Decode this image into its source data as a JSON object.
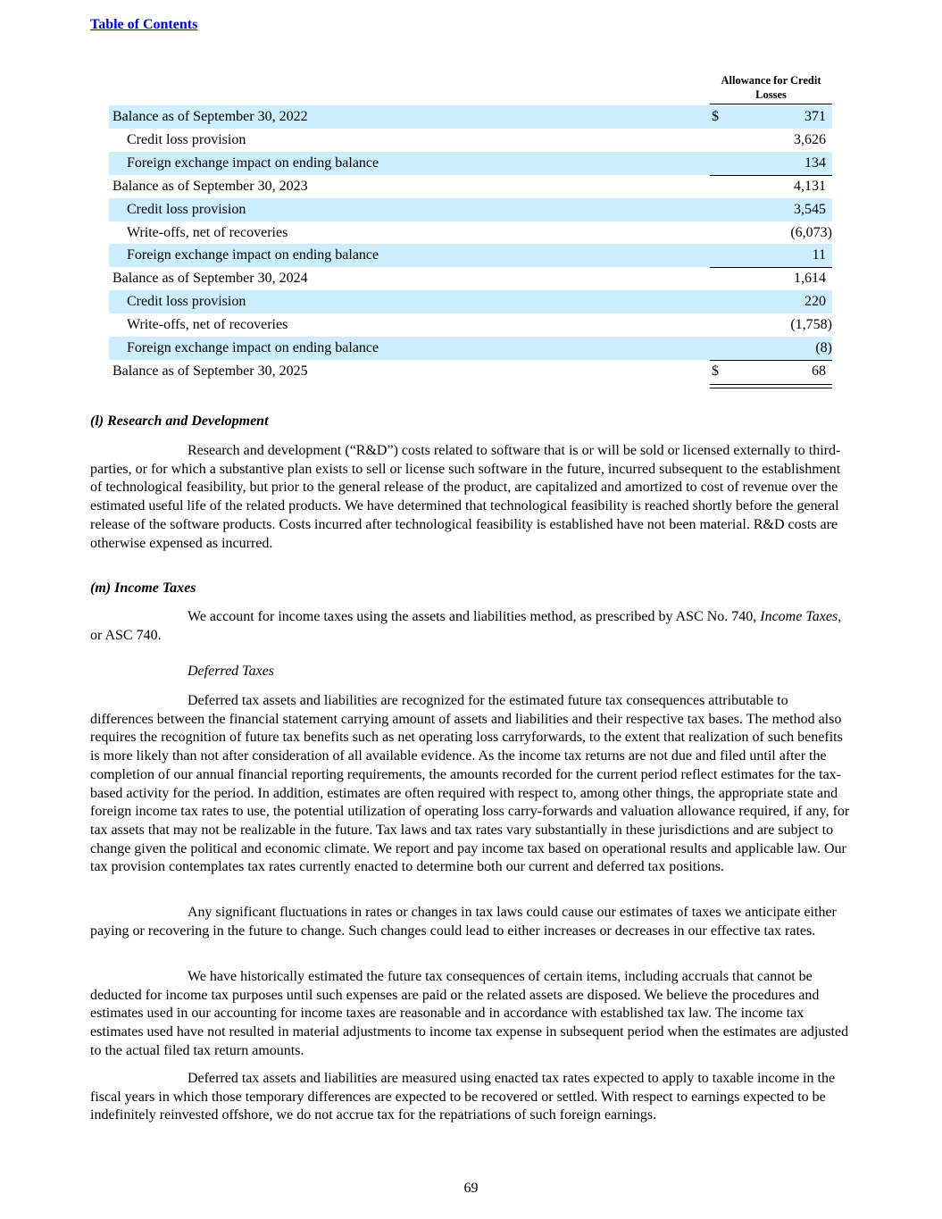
{
  "header": {
    "toc_link": "Table of Contents"
  },
  "table": {
    "column_header": "Allowance for Credit Losses",
    "rows": [
      {
        "label": "Balance as of September 30, 2022",
        "currency": "$",
        "value": "371"
      },
      {
        "label": "Credit loss provision",
        "value": "3,626"
      },
      {
        "label": "Foreign exchange impact on ending balance",
        "value": "134"
      },
      {
        "label": "Balance as of September 30, 2023",
        "value": "4,131"
      },
      {
        "label": "Credit loss provision",
        "value": "3,545"
      },
      {
        "label": "Write-offs, net of recoveries",
        "value": "(6,073)"
      },
      {
        "label": "Foreign exchange impact on ending balance",
        "value": "11"
      },
      {
        "label": "Balance as of September 30, 2024",
        "value": "1,614"
      },
      {
        "label": "Credit loss provision",
        "value": "220"
      },
      {
        "label": "Write-offs, net of recoveries",
        "value": "(1,758)"
      },
      {
        "label": "Foreign exchange impact on ending balance",
        "value": "(8)"
      },
      {
        "label": "Balance as of September 30, 2025",
        "currency": "$",
        "value": "68"
      }
    ]
  },
  "sections": {
    "rd_heading": "(l) Research and Development",
    "rd_p1": "Research and development (“R&D”) costs related to software that is or will be sold or licensed externally to third-parties, or for which a substantive plan exists to sell or license such software in the future, incurred subsequent to the establishment of technological feasibility, but prior to the general release of the product, are capitalized and amortized to cost of revenue over the estimated useful life of the related products. We have determined that technological feasibility is reached shortly before the general release of the software products. Costs incurred after technological feasibility is established have not been material. R&D costs are otherwise expensed as incurred.",
    "tax_heading": "(m) Income Taxes",
    "tax_p1_a": "We account for income taxes using the assets and liabilities method, as prescribed by ASC No. 740, ",
    "tax_p1_italic": "Income Taxes",
    "tax_p1_b": ", or ASC 740.",
    "deferred_heading": "Deferred Taxes",
    "def_p1": "Deferred tax assets and liabilities are recognized for the estimated future tax consequences attributable to differences between the financial statement carrying amount of assets and liabilities and their respective tax bases. The method also requires the recognition of future tax benefits such as net operating loss carryforwards, to the extent that realization of such benefits is more likely than not after consideration of all available evidence. As the income tax returns are not due and filed until after the completion of our annual financial reporting requirements, the amounts recorded for the current period reflect estimates for the tax-based activity for the period. In addition, estimates are often required with respect to, among other things, the appropriate state and foreign income tax rates to use, the potential utilization of operating loss carry-forwards and valuation allowance required, if any, for tax assets that may not be realizable in the future. Tax laws and tax rates vary substantially in these jurisdictions and are subject to change given the political and economic climate. We report and pay income tax based on operational results and applicable law. Our tax provision contemplates tax rates currently enacted to determine both our current and deferred tax positions.",
    "def_p2": "Any significant fluctuations in rates or changes in tax laws could cause our estimates of taxes we anticipate either paying or recovering in the future to change. Such changes could lead to either increases or decreases in our effective tax rates.",
    "def_p3": "We have historically estimated the future tax consequences of certain items, including accruals that cannot be deducted for income tax purposes until such expenses are paid or the related assets are disposed. We believe the procedures and estimates used in our accounting for income taxes are reasonable and in accordance with established tax law. The income tax estimates used have not resulted in material adjustments to income tax expense in subsequent period when the estimates are adjusted to the actual filed tax return amounts.",
    "def_p4": "Deferred tax assets and liabilities are measured using enacted tax rates expected to apply to taxable income in the fiscal years in which those temporary differences are expected to be recovered or settled. With respect to earnings expected to be indefinitely reinvested offshore, we do not accrue tax for the repatriations of such foreign earnings."
  },
  "footer": {
    "page_number": "69"
  },
  "colors": {
    "row_shade": "#cceeff",
    "link": "#0000ee"
  }
}
